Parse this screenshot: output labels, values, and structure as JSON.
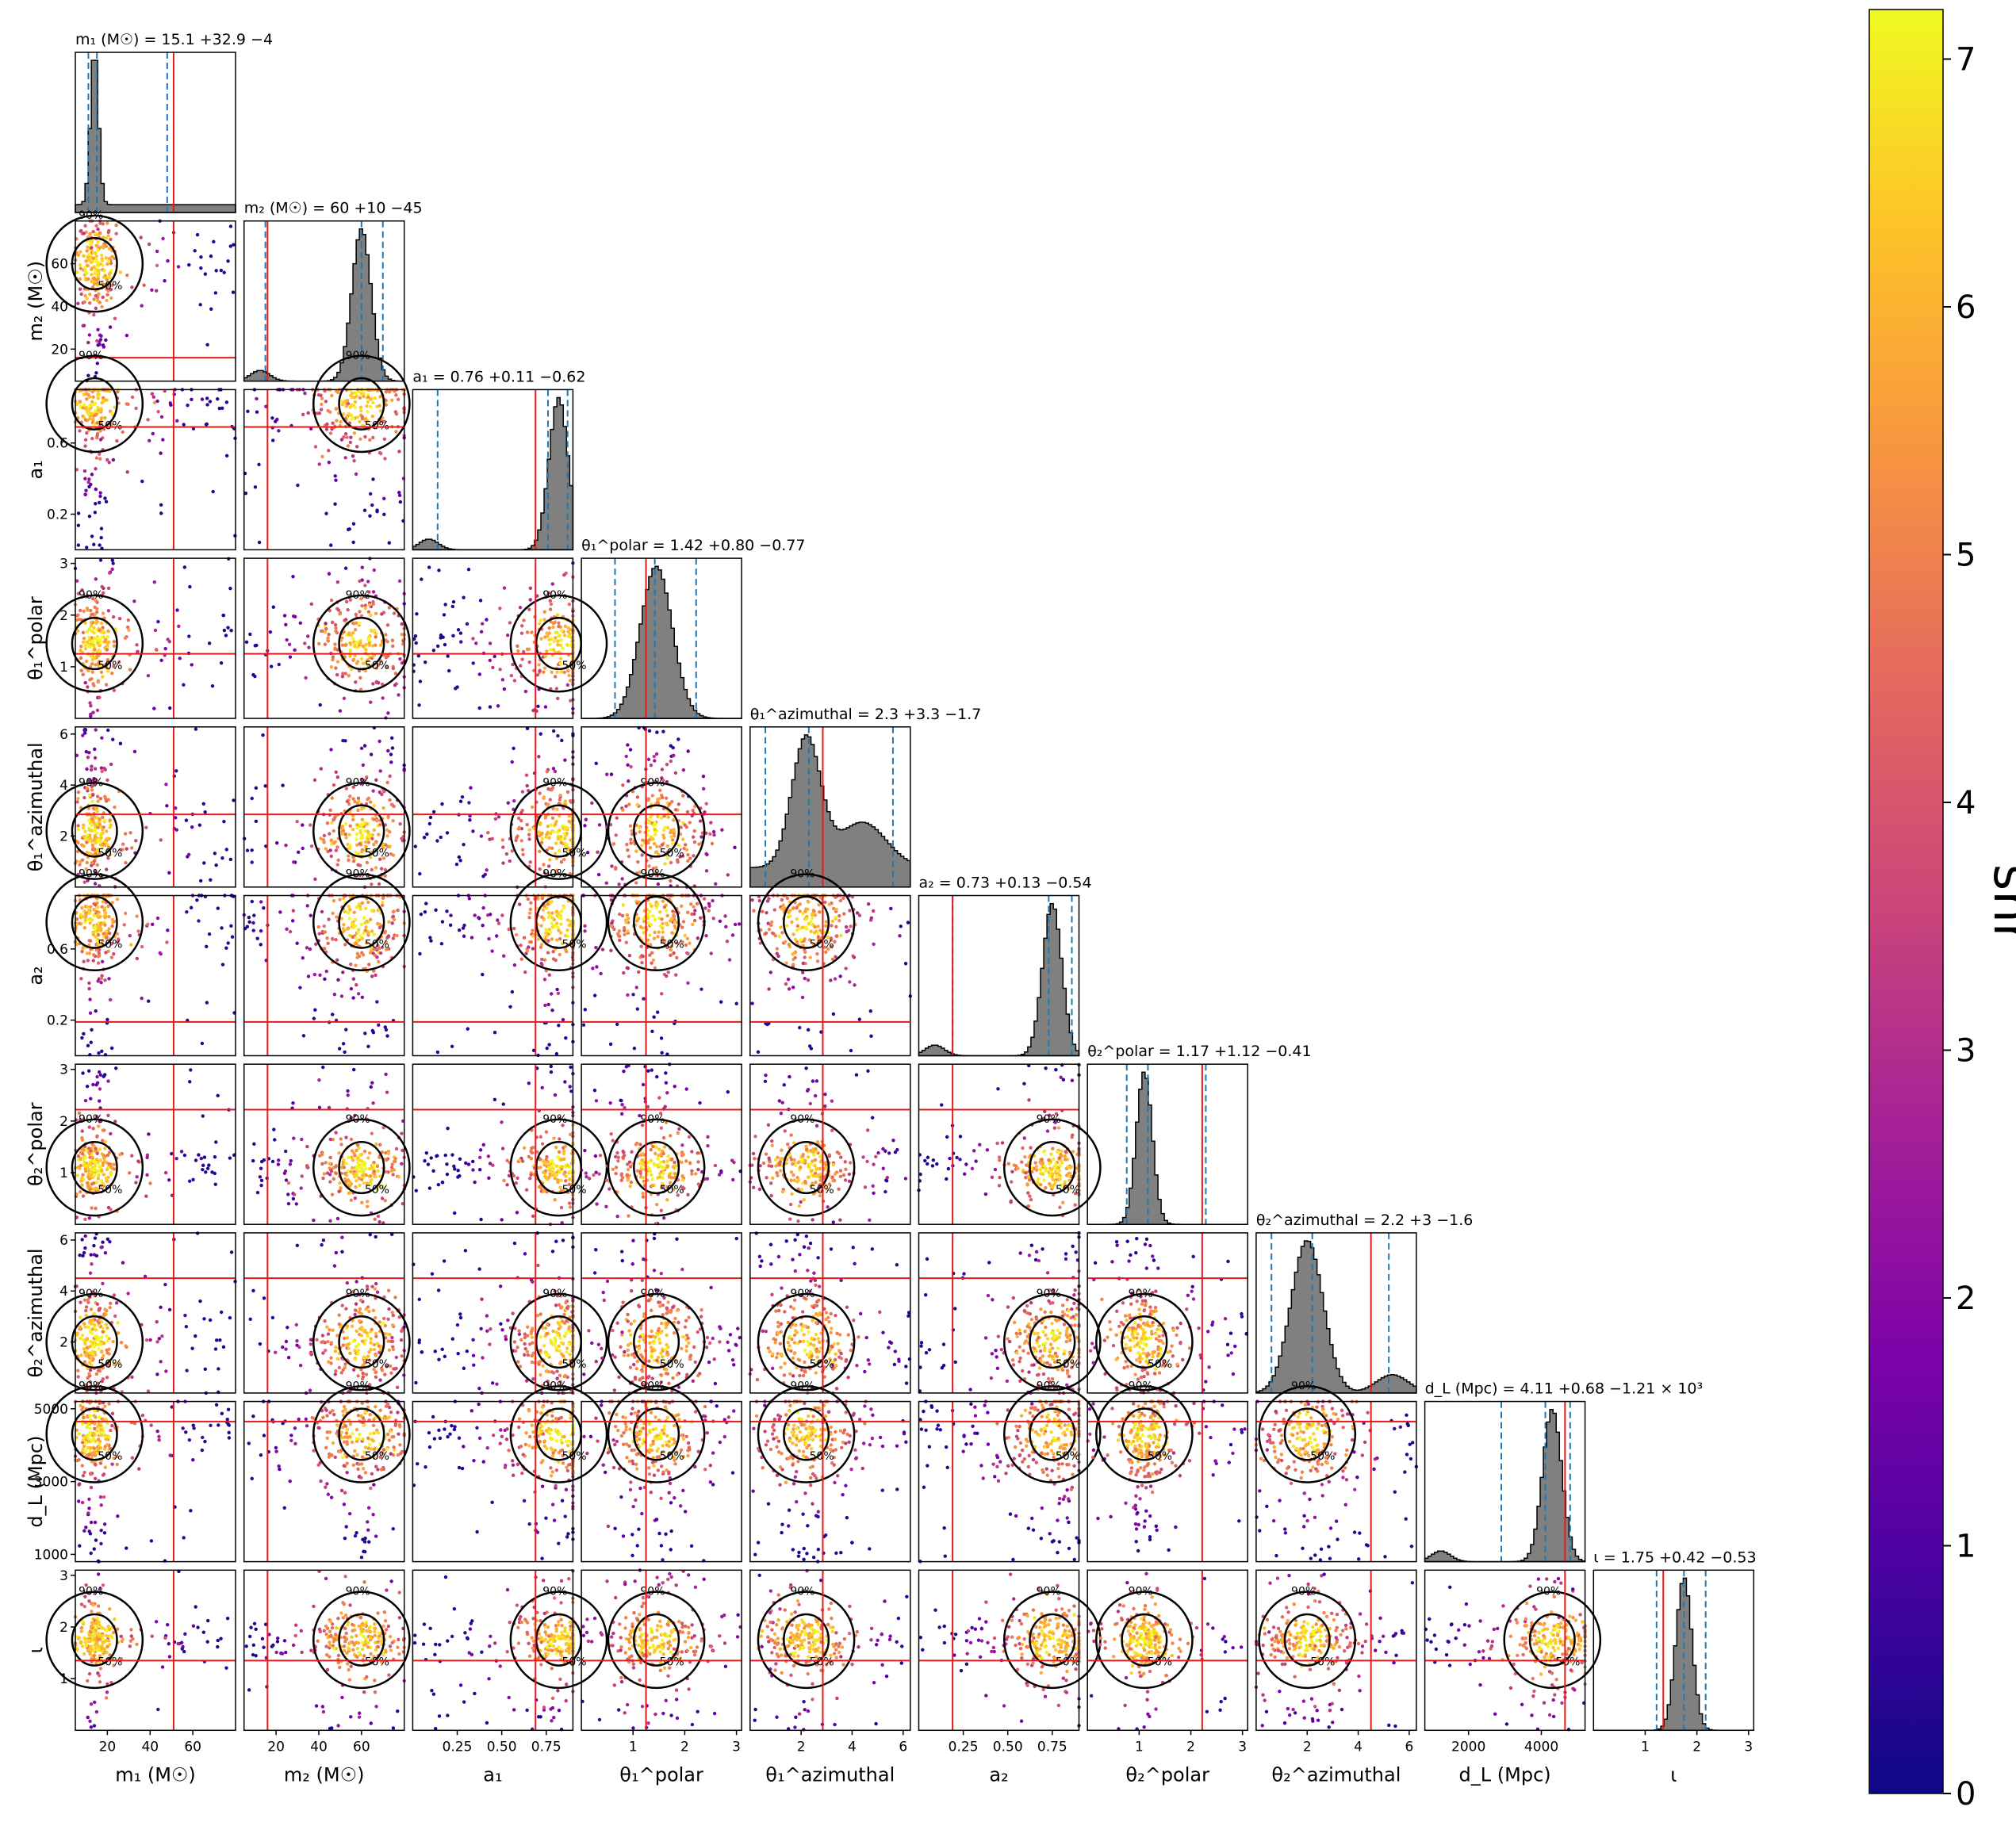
{
  "chart_data": {
    "type": "corner",
    "parameters": [
      {
        "key": "m1",
        "title": "m₁ (M☉) = 15.1 +32.9 −4",
        "xlabel": "m₁ (M☉)",
        "ylabel": "",
        "range": [
          5,
          80
        ],
        "ticks": [
          20,
          40,
          60
        ],
        "tick_labels": [
          "20",
          "40",
          "60"
        ],
        "median": 15.1,
        "lower": 11.1,
        "upper": 48.0,
        "truth": 51,
        "peak": 14,
        "hist": "skewed"
      },
      {
        "key": "m2",
        "title": "m₂ (M☉) = 60 +10 −45",
        "xlabel": "m₂ (M☉)",
        "ylabel": "m₂ (M☉)",
        "range": [
          5,
          80
        ],
        "ticks": [
          20,
          40,
          60
        ],
        "tick_labels": [
          "20",
          "40",
          "60"
        ],
        "median": 60,
        "lower": 15,
        "upper": 70,
        "truth": 16,
        "peak": 60,
        "hist": "peak-high"
      },
      {
        "key": "a1",
        "title": "a₁ = 0.76 +0.11 −0.62",
        "xlabel": "a₁",
        "ylabel": "a₁",
        "range": [
          0.0,
          0.9
        ],
        "ticks": [
          0.2,
          0.6
        ],
        "xticks": [
          0.25,
          0.5,
          0.75
        ],
        "tick_labels": [
          "0.2",
          "0.6"
        ],
        "xtick_labels": [
          "0.25",
          "0.50",
          "0.75"
        ],
        "median": 0.76,
        "lower": 0.14,
        "upper": 0.87,
        "truth": 0.69,
        "peak": 0.82,
        "hist": "peak-high"
      },
      {
        "key": "theta1_polar",
        "title": "θ₁^polar = 1.42 +0.80 −0.77",
        "xlabel": "θ₁^polar",
        "ylabel": "θ₁^polar",
        "range": [
          0,
          3.1
        ],
        "ticks": [
          1,
          2,
          3
        ],
        "tick_labels": [
          "1",
          "2",
          "3"
        ],
        "median": 1.42,
        "lower": 0.65,
        "upper": 2.22,
        "truth": 1.25,
        "peak": 1.45,
        "hist": "gauss"
      },
      {
        "key": "theta1_azimuthal",
        "title": "θ₁^azimuthal = 2.3 +3.3 −1.7",
        "xlabel": "θ₁^azimuthal",
        "ylabel": "θ₁^azimuthal",
        "range": [
          0,
          6.28
        ],
        "ticks": [
          2,
          4,
          6
        ],
        "tick_labels": [
          "2",
          "4",
          "6"
        ],
        "median": 2.3,
        "lower": 0.6,
        "upper": 5.6,
        "truth": 2.85,
        "peak": 2.2,
        "hist": "broad"
      },
      {
        "key": "a2",
        "title": "a₂ = 0.73 +0.13 −0.54",
        "xlabel": "a₂",
        "ylabel": "a₂",
        "range": [
          0.0,
          0.9
        ],
        "ticks": [
          0.2,
          0.6
        ],
        "xticks": [
          0.25,
          0.5,
          0.75
        ],
        "tick_labels": [
          "0.2",
          "0.6"
        ],
        "xtick_labels": [
          "0.25",
          "0.50",
          "0.75"
        ],
        "median": 0.73,
        "lower": 0.19,
        "upper": 0.86,
        "truth": 0.19,
        "peak": 0.75,
        "hist": "peak-high"
      },
      {
        "key": "theta2_polar",
        "title": "θ₂^polar = 1.17 +1.12 −0.41",
        "xlabel": "θ₂^polar",
        "ylabel": "θ₂^polar",
        "range": [
          0,
          3.1
        ],
        "ticks": [
          1,
          2,
          3
        ],
        "tick_labels": [
          "1",
          "2",
          "3"
        ],
        "median": 1.17,
        "lower": 0.76,
        "upper": 2.29,
        "truth": 2.22,
        "peak": 1.1,
        "hist": "gauss-narrow"
      },
      {
        "key": "theta2_azimuthal",
        "title": "θ₂^azimuthal = 2.2 +3 −1.6",
        "xlabel": "θ₂^azimuthal",
        "ylabel": "θ₂^azimuthal",
        "range": [
          0,
          6.28
        ],
        "ticks": [
          2,
          4,
          6
        ],
        "tick_labels": [
          "2",
          "4",
          "6"
        ],
        "median": 2.2,
        "lower": 0.6,
        "upper": 5.2,
        "truth": 4.5,
        "peak": 2.0,
        "hist": "gauss-tail"
      },
      {
        "key": "dL",
        "title": "d_L (Mpc) = 4.11 +0.68 −1.21 × 10³",
        "xlabel": "d_L (Mpc)",
        "ylabel": "d_L (Mpc)",
        "range": [
          800,
          5200
        ],
        "ticks": [
          1000,
          3000,
          5000
        ],
        "xticks": [
          2000,
          4000
        ],
        "tick_labels": [
          "1000",
          "3000",
          "5000"
        ],
        "xtick_labels": [
          "2000",
          "4000"
        ],
        "median": 4110,
        "lower": 2900,
        "upper": 4790,
        "truth": 4650,
        "peak": 4300,
        "hist": "peak-high"
      },
      {
        "key": "iota",
        "title": "ι = 1.75 +0.42 −0.53",
        "xlabel": "ι",
        "ylabel": "ι",
        "range": [
          0,
          3.1
        ],
        "ticks": [
          1,
          2,
          3
        ],
        "tick_labels": [
          "1",
          "2",
          "3"
        ],
        "median": 1.75,
        "lower": 1.22,
        "upper": 2.17,
        "truth": 1.35,
        "peak": 1.75,
        "hist": "gauss-narrow"
      }
    ],
    "contour_labels": [
      "50%",
      "90%"
    ],
    "colorbar": {
      "label": "snr",
      "min": 0,
      "max": 7.2,
      "ticks": [
        0,
        1,
        2,
        3,
        4,
        5,
        6,
        7
      ],
      "tick_labels": [
        "0",
        "1",
        "2",
        "3",
        "4",
        "5",
        "6",
        "7"
      ],
      "colormap": "plasma"
    },
    "colors": {
      "truth": "#e41a1c",
      "quantile": "#1f77b4",
      "hist_fill": "#808080",
      "contour": "#000000"
    }
  }
}
